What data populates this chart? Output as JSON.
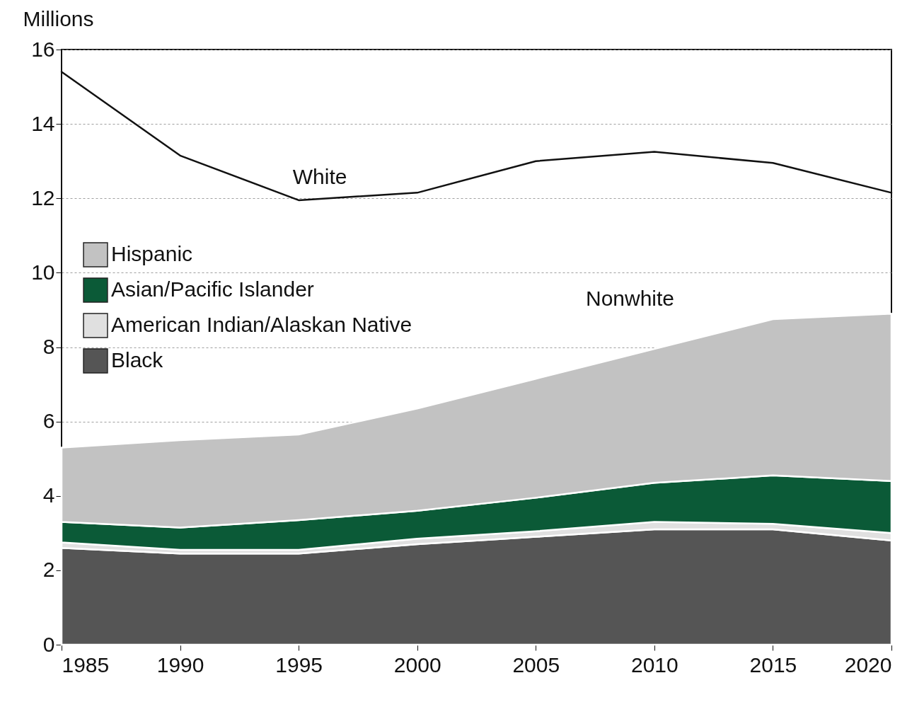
{
  "chart_data": {
    "type": "area",
    "stacked": true,
    "ylabel": "Millions",
    "x": [
      1985,
      1990,
      1995,
      2000,
      2005,
      2010,
      2015,
      2020
    ],
    "xlim": [
      1985,
      2020
    ],
    "xticks": [
      1985,
      1990,
      1995,
      2000,
      2005,
      2010,
      2015,
      2020
    ],
    "ylim": [
      0,
      16
    ],
    "yticks": [
      0,
      2,
      4,
      6,
      8,
      10,
      12,
      14,
      16
    ],
    "grid": "y",
    "legend": "left",
    "series": [
      {
        "name": "Black",
        "color": "#555555",
        "values": [
          2.6,
          2.45,
          2.45,
          2.7,
          2.9,
          3.1,
          3.1,
          2.8
        ]
      },
      {
        "name": "American Indian/Alaskan Native",
        "color": "#e0e0e0",
        "values": [
          0.15,
          0.1,
          0.1,
          0.15,
          0.15,
          0.2,
          0.15,
          0.2
        ]
      },
      {
        "name": "Asian/Pacific Islander",
        "color": "#0b5a37",
        "values": [
          0.55,
          0.6,
          0.8,
          0.75,
          0.9,
          1.05,
          1.3,
          1.4
        ]
      },
      {
        "name": "Hispanic",
        "color": "#c2c2c2",
        "values": [
          2.0,
          2.35,
          2.3,
          2.75,
          3.2,
          3.6,
          4.2,
          4.5
        ]
      },
      {
        "name": "White",
        "type": "line",
        "color": "#111111",
        "values": [
          15.4,
          13.15,
          11.95,
          12.15,
          13.0,
          13.25,
          12.95,
          12.15
        ]
      }
    ],
    "annotations": [
      "Nonwhite"
    ]
  }
}
